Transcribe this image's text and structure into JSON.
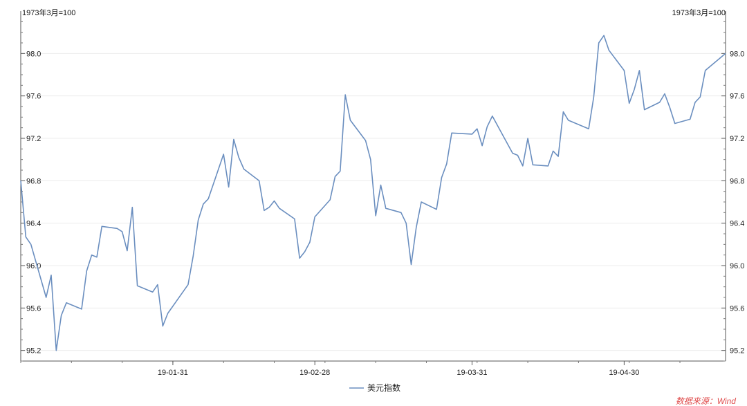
{
  "chart_data": {
    "type": "line",
    "left_unit": "1973年3月=100",
    "right_unit": "1973年3月=100",
    "ylim": [
      95.1,
      98.4
    ],
    "yticks": [
      95.2,
      95.6,
      96.0,
      96.4,
      96.8,
      97.2,
      97.6,
      98.0
    ],
    "ytick_labels": [
      "95.2",
      "95.6",
      "96.0",
      "96.4",
      "96.8",
      "97.2",
      "97.6",
      "98.0"
    ],
    "grid": true,
    "xlim": [
      "2019-01-01",
      "2019-05-20"
    ],
    "xtick_labels": [
      {
        "date": "2019-01-31",
        "label": "19-01-31"
      },
      {
        "date": "2019-02-28",
        "label": "19-02-28"
      },
      {
        "date": "2019-03-31",
        "label": "19-03-31"
      },
      {
        "date": "2019-04-30",
        "label": "19-04-30"
      }
    ],
    "legend_position": "bottom",
    "series": [
      {
        "name": "美元指数",
        "color": "#6a8ebf",
        "points": [
          [
            "2019-01-01",
            96.8
          ],
          [
            "2019-01-02",
            96.27
          ],
          [
            "2019-01-03",
            96.2
          ],
          [
            "2019-01-06",
            95.7
          ],
          [
            "2019-01-07",
            95.91
          ],
          [
            "2019-01-08",
            95.2
          ],
          [
            "2019-01-09",
            95.53
          ],
          [
            "2019-01-10",
            95.65
          ],
          [
            "2019-01-13",
            95.59
          ],
          [
            "2019-01-14",
            95.95
          ],
          [
            "2019-01-15",
            96.1
          ],
          [
            "2019-01-16",
            96.08
          ],
          [
            "2019-01-17",
            96.37
          ],
          [
            "2019-01-20",
            96.35
          ],
          [
            "2019-01-21",
            96.32
          ],
          [
            "2019-01-22",
            96.14
          ],
          [
            "2019-01-23",
            96.55
          ],
          [
            "2019-01-24",
            95.81
          ],
          [
            "2019-01-27",
            95.75
          ],
          [
            "2019-01-28",
            95.82
          ],
          [
            "2019-01-29",
            95.43
          ],
          [
            "2019-01-30",
            95.55
          ],
          [
            "2019-02-03",
            95.82
          ],
          [
            "2019-02-04",
            96.09
          ],
          [
            "2019-02-05",
            96.43
          ],
          [
            "2019-02-06",
            96.58
          ],
          [
            "2019-02-07",
            96.63
          ],
          [
            "2019-02-10",
            97.05
          ],
          [
            "2019-02-11",
            96.74
          ],
          [
            "2019-02-12",
            97.19
          ],
          [
            "2019-02-13",
            97.02
          ],
          [
            "2019-02-14",
            96.91
          ],
          [
            "2019-02-17",
            96.8
          ],
          [
            "2019-02-18",
            96.52
          ],
          [
            "2019-02-19",
            96.55
          ],
          [
            "2019-02-20",
            96.61
          ],
          [
            "2019-02-21",
            96.54
          ],
          [
            "2019-02-24",
            96.44
          ],
          [
            "2019-02-25",
            96.07
          ],
          [
            "2019-02-26",
            96.13
          ],
          [
            "2019-02-27",
            96.22
          ],
          [
            "2019-02-28",
            96.46
          ],
          [
            "2019-03-03",
            96.62
          ],
          [
            "2019-03-04",
            96.84
          ],
          [
            "2019-03-05",
            96.89
          ],
          [
            "2019-03-06",
            97.61
          ],
          [
            "2019-03-07",
            97.37
          ],
          [
            "2019-03-10",
            97.18
          ],
          [
            "2019-03-11",
            97.0
          ],
          [
            "2019-03-12",
            96.47
          ],
          [
            "2019-03-13",
            96.76
          ],
          [
            "2019-03-14",
            96.54
          ],
          [
            "2019-03-17",
            96.5
          ],
          [
            "2019-03-18",
            96.4
          ],
          [
            "2019-03-19",
            96.01
          ],
          [
            "2019-03-20",
            96.36
          ],
          [
            "2019-03-21",
            96.6
          ],
          [
            "2019-03-24",
            96.53
          ],
          [
            "2019-03-25",
            96.83
          ],
          [
            "2019-03-26",
            96.96
          ],
          [
            "2019-03-27",
            97.25
          ],
          [
            "2019-03-31",
            97.24
          ],
          [
            "2019-04-01",
            97.29
          ],
          [
            "2019-04-02",
            97.13
          ],
          [
            "2019-04-03",
            97.31
          ],
          [
            "2019-04-04",
            97.41
          ],
          [
            "2019-04-08",
            97.06
          ],
          [
            "2019-04-09",
            97.04
          ],
          [
            "2019-04-10",
            96.94
          ],
          [
            "2019-04-11",
            97.2
          ],
          [
            "2019-04-12",
            96.95
          ],
          [
            "2019-04-15",
            96.94
          ],
          [
            "2019-04-16",
            97.08
          ],
          [
            "2019-04-17",
            97.03
          ],
          [
            "2019-04-18",
            97.45
          ],
          [
            "2019-04-19",
            97.37
          ],
          [
            "2019-04-23",
            97.29
          ],
          [
            "2019-04-24",
            97.59
          ],
          [
            "2019-04-25",
            98.1
          ],
          [
            "2019-04-26",
            98.17
          ],
          [
            "2019-04-27",
            98.03
          ],
          [
            "2019-04-30",
            97.84
          ],
          [
            "2019-05-01",
            97.53
          ],
          [
            "2019-05-02",
            97.66
          ],
          [
            "2019-05-03",
            97.84
          ],
          [
            "2019-05-04",
            97.47
          ],
          [
            "2019-05-07",
            97.54
          ],
          [
            "2019-05-08",
            97.62
          ],
          [
            "2019-05-09",
            97.49
          ],
          [
            "2019-05-10",
            97.34
          ],
          [
            "2019-05-13",
            97.38
          ],
          [
            "2019-05-14",
            97.54
          ],
          [
            "2019-05-15",
            97.59
          ],
          [
            "2019-05-16",
            97.84
          ],
          [
            "2019-05-20",
            98.0
          ]
        ]
      }
    ]
  },
  "source": {
    "text": "数据来源：Wind",
    "color": "#e05050"
  }
}
